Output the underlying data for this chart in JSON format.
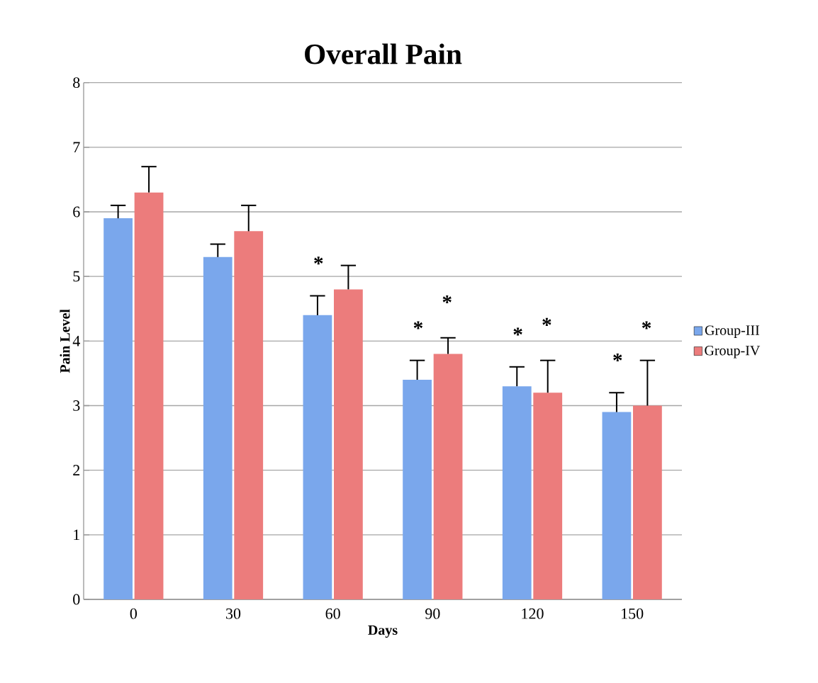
{
  "chart_data": {
    "type": "bar",
    "title": "Overall Pain",
    "xlabel": "Days",
    "ylabel": "Pain Level",
    "categories": [
      "0",
      "30",
      "60",
      "90",
      "120",
      "150"
    ],
    "series": [
      {
        "name": "Group-III",
        "color": "#7aa7ec",
        "values": [
          5.9,
          5.3,
          4.4,
          3.4,
          3.3,
          2.9
        ],
        "errors": [
          0.2,
          0.2,
          0.3,
          0.3,
          0.3,
          0.3
        ]
      },
      {
        "name": "Group-IV",
        "color": "#ec7c7c",
        "values": [
          6.3,
          5.7,
          4.8,
          3.8,
          3.2,
          3.0
        ],
        "errors": [
          0.4,
          0.4,
          0.37,
          0.25,
          0.5,
          0.7
        ]
      }
    ],
    "ylim": [
      0,
      8
    ],
    "yticks": [
      0,
      1,
      2,
      3,
      4,
      5,
      6,
      7,
      8
    ],
    "grid": "y",
    "legend": "right",
    "annotations": [
      "*",
      "*",
      "*",
      "*",
      "*",
      "*",
      "*"
    ]
  }
}
